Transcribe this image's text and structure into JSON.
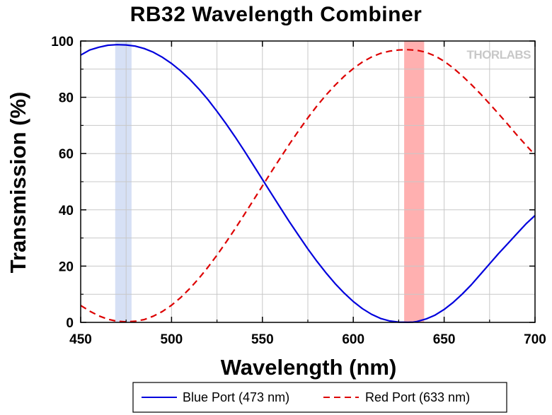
{
  "chart_data": {
    "type": "line",
    "title": "RB32 Wavelength Combiner",
    "xlabel": "Wavelength (nm)",
    "ylabel": "Transmission (%)",
    "xlim": [
      450,
      700
    ],
    "ylim": [
      0,
      100
    ],
    "x_ticks": [
      "450",
      "500",
      "550",
      "600",
      "650",
      "700"
    ],
    "y_ticks": [
      "0",
      "20",
      "40",
      "60",
      "80",
      "100"
    ],
    "grid": true,
    "legend_position": "bottom",
    "logo_text": "THORLABS",
    "highlight_bands": [
      {
        "x_start": 469,
        "x_end": 478,
        "color": "#d6e0f5"
      },
      {
        "x_start": 628,
        "x_end": 639,
        "color": "#ffb0b0"
      }
    ],
    "series": [
      {
        "name": "Blue Port (473 nm)",
        "color": "#0000dd",
        "style": "solid",
        "x": [
          450,
          455,
          460,
          465,
          470,
          475,
          480,
          485,
          490,
          495,
          500,
          505,
          510,
          515,
          520,
          525,
          530,
          535,
          540,
          545,
          550,
          555,
          560,
          565,
          570,
          575,
          580,
          585,
          590,
          595,
          600,
          605,
          610,
          615,
          620,
          625,
          630,
          633,
          635,
          640,
          645,
          650,
          655,
          660,
          665,
          670,
          675,
          680,
          685,
          690,
          695,
          700
        ],
        "values": [
          95,
          96.8,
          97.8,
          98.5,
          98.7,
          98.6,
          98.2,
          97.3,
          96,
          94.2,
          92,
          89.4,
          86.4,
          83,
          79.2,
          75,
          70.6,
          65.9,
          61,
          55.9,
          50.8,
          45.7,
          40.6,
          35.6,
          30.8,
          26.1,
          21.7,
          17.6,
          13.8,
          10.4,
          7.4,
          4.9,
          2.9,
          1.4,
          0.5,
          0.1,
          0.05,
          0.1,
          0.3,
          1.2,
          2.6,
          4.6,
          7.1,
          10.1,
          13.4,
          17.1,
          20.8,
          24.5,
          28,
          31.5,
          35,
          38
        ]
      },
      {
        "name": "Red Port (633 nm)",
        "color": "#dd0000",
        "style": "dashed",
        "x": [
          450,
          455,
          460,
          465,
          470,
          475,
          480,
          485,
          490,
          495,
          500,
          505,
          510,
          515,
          520,
          525,
          530,
          535,
          540,
          545,
          550,
          555,
          560,
          565,
          570,
          575,
          580,
          585,
          590,
          595,
          600,
          605,
          610,
          615,
          620,
          625,
          630,
          635,
          640,
          645,
          650,
          655,
          660,
          665,
          670,
          675,
          680,
          685,
          690,
          695,
          700
        ],
        "values": [
          6,
          4,
          2.3,
          1.1,
          0.4,
          0.2,
          0.4,
          1,
          2.2,
          3.9,
          6.1,
          8.8,
          12,
          15.6,
          19.6,
          23.9,
          28.5,
          33.3,
          38.3,
          43.4,
          48.5,
          53.6,
          58.6,
          63.5,
          68.2,
          72.7,
          76.9,
          80.8,
          84.3,
          87.5,
          90.2,
          92.5,
          94.3,
          95.6,
          96.4,
          96.8,
          96.9,
          96.7,
          96,
          94.7,
          92.8,
          90.4,
          87.6,
          84.5,
          81.2,
          77.7,
          74.1,
          70.4,
          66.6,
          63,
          59.5
        ]
      }
    ]
  }
}
